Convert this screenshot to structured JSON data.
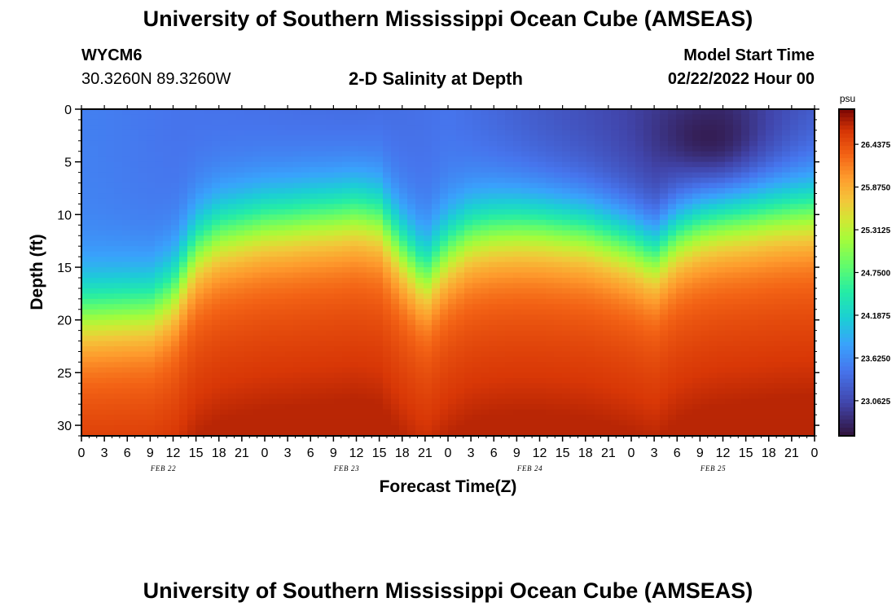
{
  "header": {
    "title": "University of Southern Mississippi Ocean Cube (AMSEAS)",
    "station_id": "WYCM6",
    "coordinates": "30.3260N  89.3260W",
    "subtitle": "2-D Salinity at Depth",
    "model_start_label": "Model Start Time",
    "model_start_value": "02/22/2022 Hour 00"
  },
  "footer": {
    "title": "University of Southern Mississippi Ocean Cube (AMSEAS)"
  },
  "chart_data": {
    "type": "heatmap",
    "title": "2-D Salinity at Depth",
    "xlabel": "Forecast Time(Z)",
    "ylabel": "Depth (ft)",
    "x_range_hours": [
      0,
      96
    ],
    "ylim": [
      0,
      31
    ],
    "y_ticks": [
      0,
      5,
      10,
      15,
      20,
      25,
      30
    ],
    "x_tick_labels": [
      "0",
      "3",
      "6",
      "9",
      "12",
      "15",
      "18",
      "21",
      "0",
      "3",
      "6",
      "9",
      "12",
      "15",
      "18",
      "21",
      "0",
      "3",
      "6",
      "9",
      "12",
      "15",
      "18",
      "21",
      "0",
      "3",
      "6",
      "9",
      "12",
      "15",
      "18",
      "21",
      "0"
    ],
    "date_labels": [
      "FEB 22",
      "FEB 23",
      "FEB 24",
      "FEB 25"
    ],
    "colorbar": {
      "unit": "psu",
      "range": [
        22.6,
        26.9
      ],
      "tick_values": [
        26.4375,
        25.875,
        25.3125,
        24.75,
        24.1875,
        23.625,
        23.0625
      ],
      "tick_labels": [
        "26.4375",
        "25.8750",
        "25.3125",
        "24.7500",
        "24.1875",
        "23.6250",
        "23.0625"
      ]
    },
    "halocline_depth_ft": {
      "hours": [
        0,
        9,
        12,
        15,
        18,
        21,
        24,
        27,
        30,
        33,
        36,
        39,
        42,
        45,
        48,
        51,
        54,
        57,
        60,
        63,
        66,
        69,
        72,
        75,
        78,
        81,
        84,
        87,
        90,
        93,
        96
      ],
      "depth": [
        19,
        18.5,
        17,
        13,
        11.5,
        11,
        10.5,
        10.3,
        10,
        9.8,
        9.5,
        10,
        13,
        15.5,
        13,
        11.5,
        11,
        10.8,
        10.8,
        11,
        11.2,
        11.8,
        12.5,
        13.5,
        11.5,
        10.5,
        10,
        9.8,
        9.5,
        9.3,
        9.2
      ]
    },
    "surface_salinity_psu": {
      "hours": [
        0,
        12,
        24,
        36,
        48,
        60,
        72,
        84,
        96
      ],
      "values": [
        23.55,
        23.45,
        23.4,
        23.35,
        23.45,
        23.2,
        23.0,
        22.8,
        23.2
      ]
    },
    "fresh_core": {
      "hour": 82,
      "depth_ft": 2.5,
      "salinity_psu": 22.7
    }
  }
}
